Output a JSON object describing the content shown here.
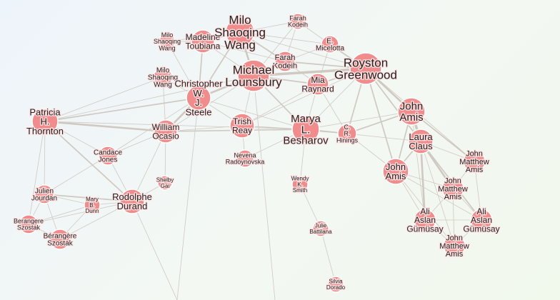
{
  "colors": {
    "node": "#f08c8c",
    "edge": "#cfc9c1"
  },
  "nodes": [
    {
      "id": "farah1",
      "lines": [
        "Farah",
        "Kodeih"
      ]
    },
    {
      "id": "milo1",
      "lines": [
        "Milo",
        "Shaoqing",
        "Wang"
      ]
    },
    {
      "id": "madeline",
      "lines": [
        "Madeline",
        "Toubiana"
      ]
    },
    {
      "id": "milo_big",
      "lines": [
        "Milo",
        "Shaoqing",
        "Wang"
      ]
    },
    {
      "id": "e_micelotta",
      "lines": [
        "E.",
        "Micelotta"
      ]
    },
    {
      "id": "farah2",
      "lines": [
        "Farah",
        "Kodeih"
      ]
    },
    {
      "id": "royston",
      "lines": [
        "Royston",
        "Greenwood"
      ]
    },
    {
      "id": "michael",
      "lines": [
        "Michael",
        "Lounsbury"
      ]
    },
    {
      "id": "milo2",
      "lines": [
        "Milo",
        "Shaoqing",
        "Wang"
      ]
    },
    {
      "id": "mia",
      "lines": [
        "Mia",
        "Raynard"
      ]
    },
    {
      "id": "christopher",
      "lines": [
        "Christopher",
        "W.",
        "J.",
        "Steele"
      ]
    },
    {
      "id": "patricia",
      "lines": [
        "Patricia",
        "H.",
        "Thornton"
      ]
    },
    {
      "id": "john_amis1",
      "lines": [
        "John",
        "Amis"
      ]
    },
    {
      "id": "trish",
      "lines": [
        "Trish",
        "Reay"
      ]
    },
    {
      "id": "marya",
      "lines": [
        "Marya",
        "L.",
        "Besharov"
      ]
    },
    {
      "id": "william",
      "lines": [
        "William",
        "Ocasio"
      ]
    },
    {
      "id": "cr_hinings",
      "lines": [
        "C.",
        "R.",
        "Hinings"
      ]
    },
    {
      "id": "laura",
      "lines": [
        "Laura",
        "Claus"
      ]
    },
    {
      "id": "candace",
      "lines": [
        "Candace",
        "Jones"
      ]
    },
    {
      "id": "nevena",
      "lines": [
        "Nevena",
        "Radoynovska"
      ]
    },
    {
      "id": "jma1",
      "lines": [
        "John",
        "Matthew",
        "Amis"
      ]
    },
    {
      "id": "john_amis2",
      "lines": [
        "John",
        "Amis"
      ]
    },
    {
      "id": "shelby",
      "lines": [
        "Shelby",
        "Gai"
      ]
    },
    {
      "id": "wendy",
      "lines": [
        "Wendy",
        "K.",
        "Smith"
      ]
    },
    {
      "id": "jma2",
      "lines": [
        "John",
        "Matthew",
        "Amis"
      ]
    },
    {
      "id": "julien",
      "lines": [
        "Julien",
        "Jourdan"
      ]
    },
    {
      "id": "mary",
      "lines": [
        "Mary",
        "B.",
        "Dunn"
      ]
    },
    {
      "id": "rodolphe",
      "lines": [
        "Rodolphe",
        "Durand"
      ]
    },
    {
      "id": "berangere1",
      "lines": [
        "Berangere",
        "Szostak"
      ]
    },
    {
      "id": "ali1",
      "lines": [
        "Ali",
        "Aslan",
        "Gümüsay"
      ]
    },
    {
      "id": "ali2",
      "lines": [
        "Ali",
        "Aslan",
        "Gümüsay"
      ]
    },
    {
      "id": "julie",
      "lines": [
        "Julie",
        "Battilana"
      ]
    },
    {
      "id": "berangere2",
      "lines": [
        "Bérangère",
        "Szostak"
      ]
    },
    {
      "id": "jma3",
      "lines": [
        "John",
        "Matthew",
        "Amis"
      ]
    },
    {
      "id": "silvia",
      "lines": [
        "Silvia",
        "Dorado"
      ]
    }
  ]
}
